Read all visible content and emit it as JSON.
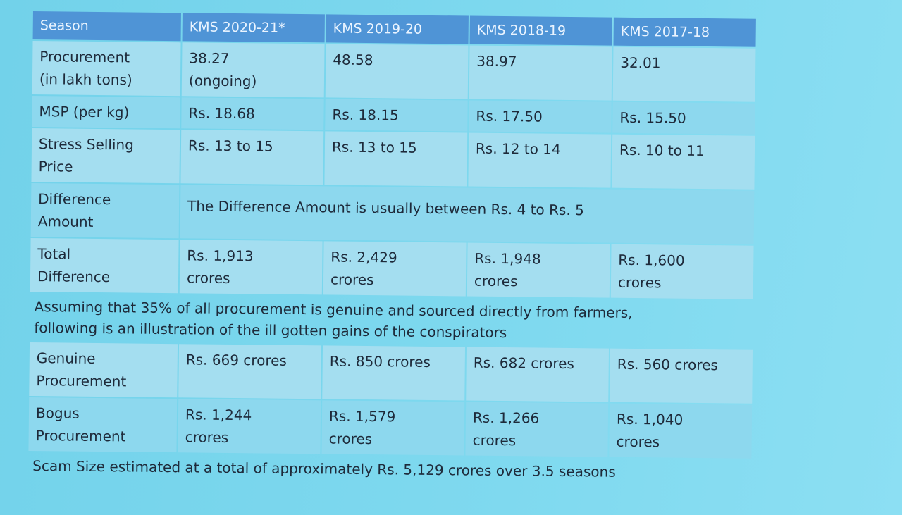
{
  "table": {
    "header": [
      "Season",
      "KMS 2020-21*",
      "KMS 2019-20",
      "KMS 2018-19",
      "KMS 2017-18"
    ],
    "rows": [
      [
        "Procurement\n(in lakh tons)",
        "38.27\n(ongoing)",
        "48.58",
        "38.97",
        "32.01"
      ],
      [
        "MSP (per kg)",
        "Rs. 18.68",
        "Rs. 18.15",
        "Rs. 17.50",
        "Rs. 15.50"
      ],
      [
        "Stress Selling\nPrice",
        "Rs. 13 to 15",
        "Rs. 13 to 15",
        "Rs. 12 to 14",
        "Rs. 10 to 11"
      ],
      [
        "Difference\nAmount",
        "The Difference Amount is usually between Rs. 4 to Rs. 5"
      ],
      [
        "Total\nDifference",
        "Rs. 1,913\ncrores",
        "Rs. 2,429\ncrores",
        "Rs. 1,948\ncrores",
        "Rs. 1,600\ncrores"
      ],
      [
        "Assuming that 35% of all procurement is genuine and sourced directly from farmers,\nfollowing is an illustration of the ill gotten gains of the conspirators"
      ],
      [
        "Genuine\nProcurement",
        "Rs. 669 crores",
        "Rs. 850 crores",
        "Rs. 682 crores",
        "Rs. 560 crores"
      ],
      [
        "Bogus\nProcurement",
        "Rs. 1,244\ncrores",
        "Rs. 1,579\ncrores",
        "Rs. 1,266\ncrores",
        "Rs. 1,040\ncrores"
      ],
      [
        "Scam Size estimated at a total of approximately Rs. 5,129 crores over 3.5 seasons"
      ]
    ]
  }
}
